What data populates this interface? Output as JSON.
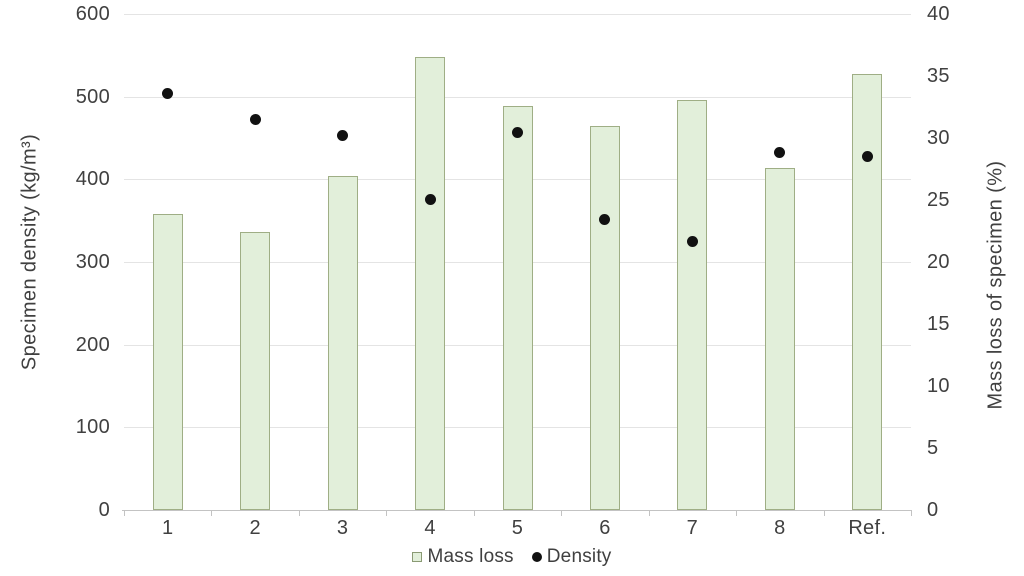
{
  "chart_data": {
    "type": "bar",
    "title": "",
    "categories": [
      "1",
      "2",
      "3",
      "4",
      "5",
      "6",
      "7",
      "8",
      "Ref."
    ],
    "series": [
      {
        "name": "Mass loss",
        "kind": "bar",
        "axis": "right",
        "values": [
          23.9,
          22.4,
          26.9,
          36.5,
          32.6,
          31.0,
          33.1,
          27.6,
          35.2
        ],
        "fill": "#e2efda",
        "stroke": "#9fae85"
      },
      {
        "name": "Density",
        "kind": "scatter",
        "axis": "left",
        "values": [
          504,
          473,
          453,
          376,
          457,
          352,
          325,
          433,
          428
        ],
        "color": "#111111"
      }
    ],
    "left_axis": {
      "title": "Specimen density (kg/m³)",
      "min": 0,
      "max": 600,
      "step": 100
    },
    "right_axis": {
      "title": "Mass loss of specimen (%)",
      "min": 0,
      "max": 40,
      "step": 5
    },
    "legend": {
      "position": "bottom",
      "items": [
        {
          "label": "Mass loss",
          "marker": "square"
        },
        {
          "label": "Density",
          "marker": "circle"
        }
      ]
    },
    "grid": true,
    "colors": {
      "text": "#404040",
      "gridline": "#e4e4e4",
      "axis_line": "#c3c3c3",
      "background": "#ffffff"
    }
  }
}
